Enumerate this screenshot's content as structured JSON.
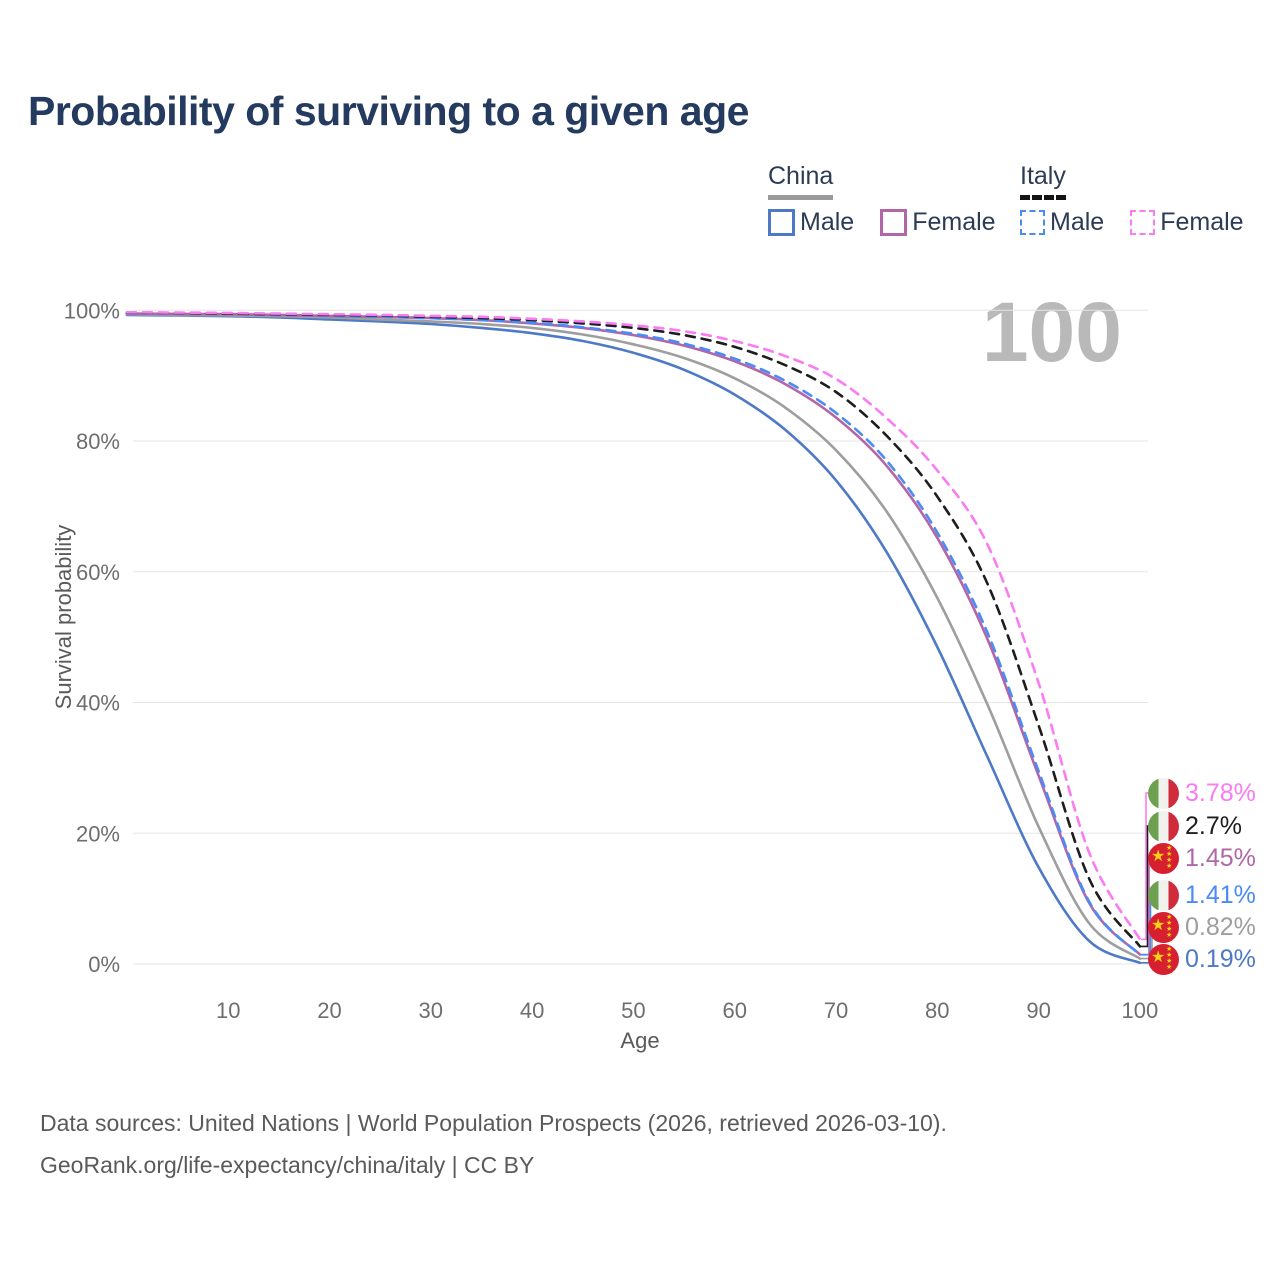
{
  "title": "Probability of surviving to a given age",
  "watermark": "100",
  "legend": {
    "groups": [
      {
        "label": "China",
        "line_style": "solid",
        "header_color": "#9a9a9a",
        "items": [
          {
            "label": "Male",
            "color": "#4d79c7"
          },
          {
            "label": "Female",
            "color": "#b266a8"
          }
        ]
      },
      {
        "label": "Italy",
        "line_style": "dashed",
        "header_color": "#141414",
        "items": [
          {
            "label": "Male",
            "color": "#4b8bf5"
          },
          {
            "label": "Female",
            "color": "#fb7bf2"
          }
        ]
      }
    ]
  },
  "chart_data": {
    "type": "line",
    "title": "Probability of surviving to a given age",
    "xlabel": "Age",
    "ylabel": "Survival probability",
    "xlim": [
      0,
      100
    ],
    "ylim": [
      0,
      100
    ],
    "grid": "horizontal",
    "x_ticks": [
      "10",
      "20",
      "30",
      "40",
      "50",
      "60",
      "70",
      "80",
      "90",
      "100"
    ],
    "x_tick_values": [
      10,
      20,
      30,
      40,
      50,
      60,
      70,
      80,
      90,
      100
    ],
    "y_ticks": [
      "0%",
      "20%",
      "40%",
      "60%",
      "80%",
      "100%"
    ],
    "y_tick_values": [
      0,
      20,
      40,
      60,
      80,
      100
    ],
    "ages": [
      0,
      5,
      10,
      15,
      20,
      25,
      30,
      35,
      40,
      45,
      50,
      55,
      60,
      65,
      70,
      75,
      80,
      85,
      90,
      95,
      100
    ],
    "series": [
      {
        "name": "China Male",
        "country": "China",
        "sex": "Male",
        "color": "#4d79c7",
        "dash": "solid",
        "end_label": "0.19%",
        "values": [
          99.3,
          99.2,
          99.1,
          98.9,
          98.6,
          98.3,
          97.9,
          97.3,
          96.5,
          95.3,
          93.5,
          90.9,
          87.1,
          81.7,
          74.0,
          63.0,
          48.5,
          31.5,
          14.8,
          3.5,
          0.19
        ]
      },
      {
        "name": "China",
        "country": "China",
        "sex": "Both",
        "color": "#9e9e9e",
        "dash": "solid",
        "end_label": "0.82%",
        "values": [
          99.4,
          99.3,
          99.2,
          99.1,
          98.9,
          98.6,
          98.3,
          97.9,
          97.3,
          96.3,
          94.8,
          92.7,
          89.6,
          85.1,
          78.6,
          69.2,
          56.0,
          39.5,
          21.0,
          6.2,
          0.82
        ]
      },
      {
        "name": "China Female",
        "country": "China",
        "sex": "Female",
        "color": "#b266a8",
        "dash": "solid",
        "end_label": "1.45%",
        "values": [
          99.5,
          99.45,
          99.4,
          99.3,
          99.15,
          99.0,
          98.8,
          98.5,
          98.0,
          97.3,
          96.2,
          94.6,
          92.2,
          88.7,
          83.6,
          76.2,
          65.2,
          49.5,
          28.8,
          9.3,
          1.45
        ]
      },
      {
        "name": "Italy Male",
        "country": "Italy",
        "sex": "Male",
        "color": "#4b8bf5",
        "dash": "dashed",
        "end_label": "1.41%",
        "values": [
          99.6,
          99.55,
          99.5,
          99.35,
          99.2,
          99.0,
          98.8,
          98.5,
          98.1,
          97.4,
          96.4,
          94.9,
          92.6,
          89.2,
          84.3,
          77.0,
          66.0,
          50.5,
          29.5,
          9.5,
          1.41
        ]
      },
      {
        "name": "Italy",
        "country": "Italy",
        "sex": "Both",
        "color": "#1d1d1d",
        "dash": "dashed",
        "end_label": "2.7%",
        "values": [
          99.65,
          99.6,
          99.5,
          99.4,
          99.3,
          99.2,
          99.0,
          98.8,
          98.5,
          98.0,
          97.3,
          96.2,
          94.4,
          91.6,
          87.5,
          80.8,
          71.5,
          58.0,
          36.5,
          13.0,
          2.7
        ]
      },
      {
        "name": "Italy Female",
        "country": "Italy",
        "sex": "Female",
        "color": "#fb7bf2",
        "dash": "dashed",
        "end_label": "3.78%",
        "values": [
          99.7,
          99.65,
          99.6,
          99.5,
          99.4,
          99.3,
          99.15,
          99.0,
          98.7,
          98.3,
          97.7,
          96.8,
          95.3,
          93.0,
          89.5,
          83.5,
          75.5,
          64.0,
          43.0,
          17.0,
          3.78
        ]
      }
    ]
  },
  "endpoints": [
    {
      "series": "Italy Female",
      "value": "3.78%",
      "color": "#fb7bf2",
      "flag": "italy"
    },
    {
      "series": "Italy",
      "value": "2.7%",
      "color": "#1d1d1d",
      "flag": "italy"
    },
    {
      "series": "China Female",
      "value": "1.45%",
      "color": "#b266a8",
      "flag": "china"
    },
    {
      "series": "Italy Male",
      "value": "1.41%",
      "color": "#4b8bf5",
      "flag": "italy"
    },
    {
      "series": "China",
      "value": "0.82%",
      "color": "#9e9e9e",
      "flag": "china"
    },
    {
      "series": "China Male",
      "value": "0.19%",
      "color": "#4d79c7",
      "flag": "china"
    }
  ],
  "footer": {
    "line1": "Data sources: United Nations | World Population Prospects (2026, retrieved 2026-03-10).",
    "line2": "GeoRank.org/life-expectancy/china/italy | CC BY"
  }
}
